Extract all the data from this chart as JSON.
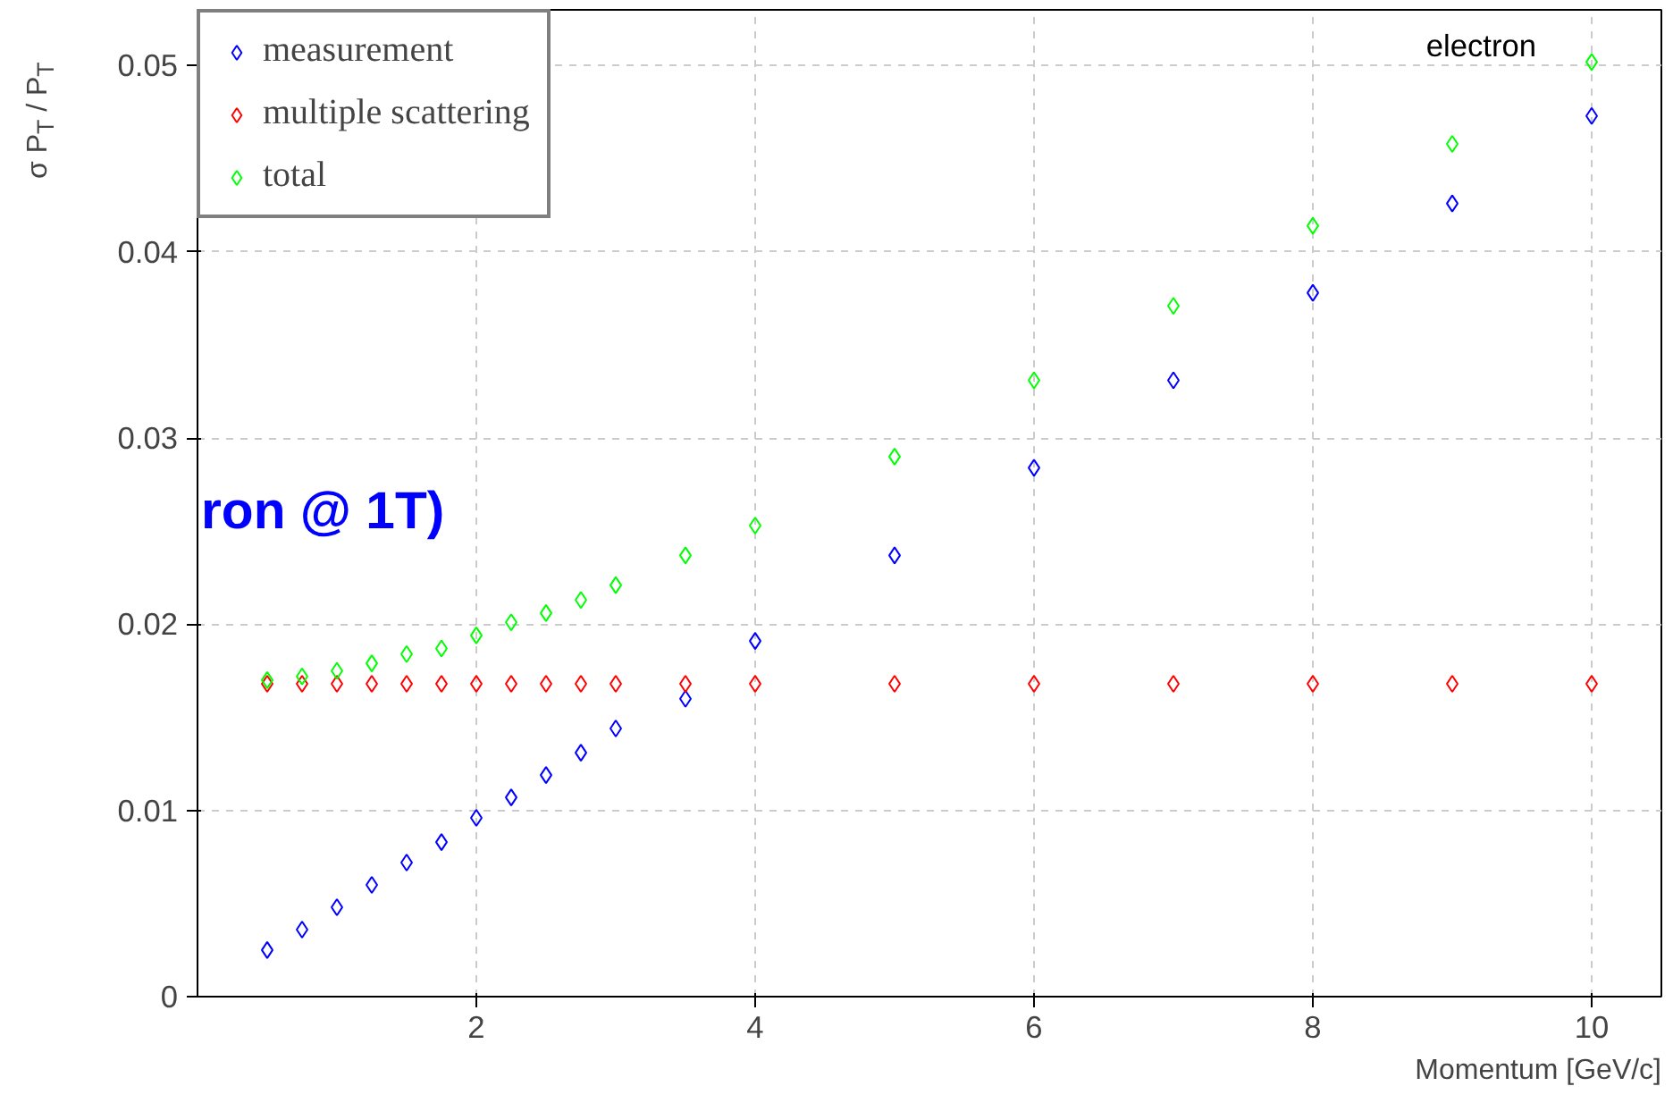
{
  "chart_data": {
    "type": "scatter",
    "ylabel": "σ P$_{T}$ / P$_{T}$",
    "xlabel": "Momentum [GeV/c]",
    "annotations": [
      "electron",
      "ron @ 1T)"
    ],
    "x": [
      0.5,
      0.75,
      1,
      1.25,
      1.5,
      1.75,
      2,
      2.25,
      2.5,
      2.75,
      3,
      3.5,
      4,
      5,
      6,
      7,
      8,
      9,
      10
    ],
    "series": [
      {
        "name": "measurement",
        "color": "#0000ff",
        "values": [
          0.0025,
          0.0036,
          0.0048,
          0.006,
          0.0072,
          0.0083,
          0.0096,
          0.0107,
          0.0119,
          0.0131,
          0.0144,
          0.016,
          0.0191,
          0.0237,
          0.0284,
          0.0331,
          0.0378,
          0.0426,
          0.0473
        ]
      },
      {
        "name": "multiple scattering",
        "color": "#ff0000",
        "values": [
          0.0168,
          0.0168,
          0.0168,
          0.0168,
          0.0168,
          0.0168,
          0.0168,
          0.0168,
          0.0168,
          0.0168,
          0.0168,
          0.0168,
          0.0168,
          0.0168,
          0.0168,
          0.0168,
          0.0168,
          0.0168,
          0.0168
        ]
      },
      {
        "name": "total",
        "color": "#00ff00",
        "values": [
          0.017,
          0.0172,
          0.0175,
          0.0179,
          0.0184,
          0.0187,
          0.0194,
          0.0201,
          0.0206,
          0.0213,
          0.0221,
          0.0237,
          0.0253,
          0.029,
          0.0331,
          0.0371,
          0.0414,
          0.0458,
          0.0502
        ]
      }
    ],
    "xlim": [
      0,
      10.5
    ],
    "ylim": [
      0,
      0.053
    ],
    "xticks": [
      2,
      4,
      6,
      8,
      10
    ],
    "yticks": [
      0,
      0.01,
      0.02,
      0.03,
      0.04,
      0.05
    ],
    "grid": true,
    "legend": "top left",
    "marker": "diamond"
  }
}
